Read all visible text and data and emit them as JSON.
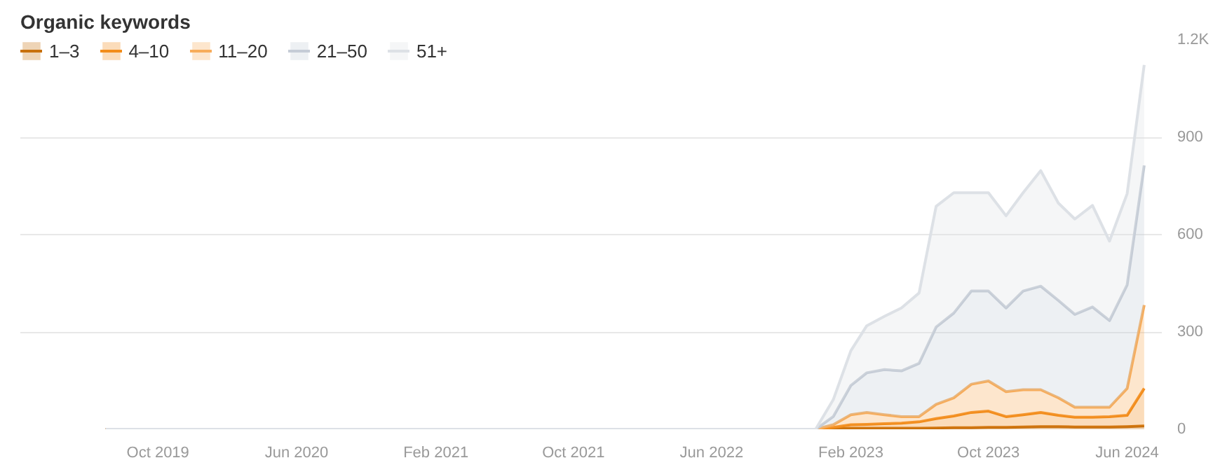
{
  "chart_data": {
    "type": "area",
    "title": "Organic keywords",
    "stacked": true,
    "x": [
      "2019-07",
      "2022-12",
      "2023-01",
      "2023-02",
      "2023-03",
      "2023-04",
      "2023-05",
      "2023-06",
      "2023-07",
      "2023-08",
      "2023-09",
      "2023-10",
      "2023-11",
      "2023-12",
      "2024-01",
      "2024-02",
      "2024-03",
      "2024-04",
      "2024-05",
      "2024-06",
      "2024-07"
    ],
    "series": [
      {
        "name": "1–3",
        "color": "#c8700c",
        "values": [
          0,
          0,
          2,
          3,
          3,
          3,
          3,
          3,
          4,
          5,
          5,
          6,
          6,
          7,
          8,
          8,
          7,
          7,
          7,
          8,
          10
        ]
      },
      {
        "name": "4–10",
        "color": "#f28c1a",
        "values": [
          0,
          0,
          4,
          11,
          12,
          14,
          16,
          20,
          29,
          36,
          47,
          50,
          33,
          38,
          44,
          35,
          30,
          30,
          32,
          35,
          116
        ]
      },
      {
        "name": "11–20",
        "color": "#f7ac5a",
        "values": [
          0,
          0,
          8,
          31,
          37,
          28,
          20,
          16,
          44,
          56,
          87,
          93,
          77,
          77,
          70,
          54,
          31,
          31,
          29,
          83,
          257
        ]
      },
      {
        "name": "21–50",
        "color": "#c5ccd6",
        "values": [
          0,
          0,
          25,
          90,
          122,
          139,
          141,
          164,
          238,
          261,
          287,
          277,
          258,
          304,
          319,
          300,
          286,
          309,
          267,
          319,
          430
        ]
      },
      {
        "name": "51+",
        "color": "#dde1e6",
        "values": [
          0,
          0,
          52,
          107,
          145,
          164,
          194,
          217,
          372,
          371,
          303,
          303,
          284,
          303,
          356,
          300,
          294,
          313,
          245,
          281,
          310
        ]
      }
    ],
    "xlim": [
      "2019-02",
      "2024-08"
    ],
    "xticks": [
      {
        "value": "2019-10",
        "label": "Oct 2019"
      },
      {
        "value": "2020-06",
        "label": "Jun 2020"
      },
      {
        "value": "2021-02",
        "label": "Feb 2021"
      },
      {
        "value": "2021-10",
        "label": "Oct 2021"
      },
      {
        "value": "2022-06",
        "label": "Jun 2022"
      },
      {
        "value": "2023-02",
        "label": "Feb 2023"
      },
      {
        "value": "2023-10",
        "label": "Oct 2023"
      },
      {
        "value": "2024-06",
        "label": "Jun 2024"
      }
    ],
    "ylim": [
      0,
      1200
    ],
    "yticks": [
      0,
      300,
      600,
      900,
      {
        "value": 1200,
        "label": "1.2K"
      }
    ],
    "grid": "y",
    "legend": "top left"
  }
}
